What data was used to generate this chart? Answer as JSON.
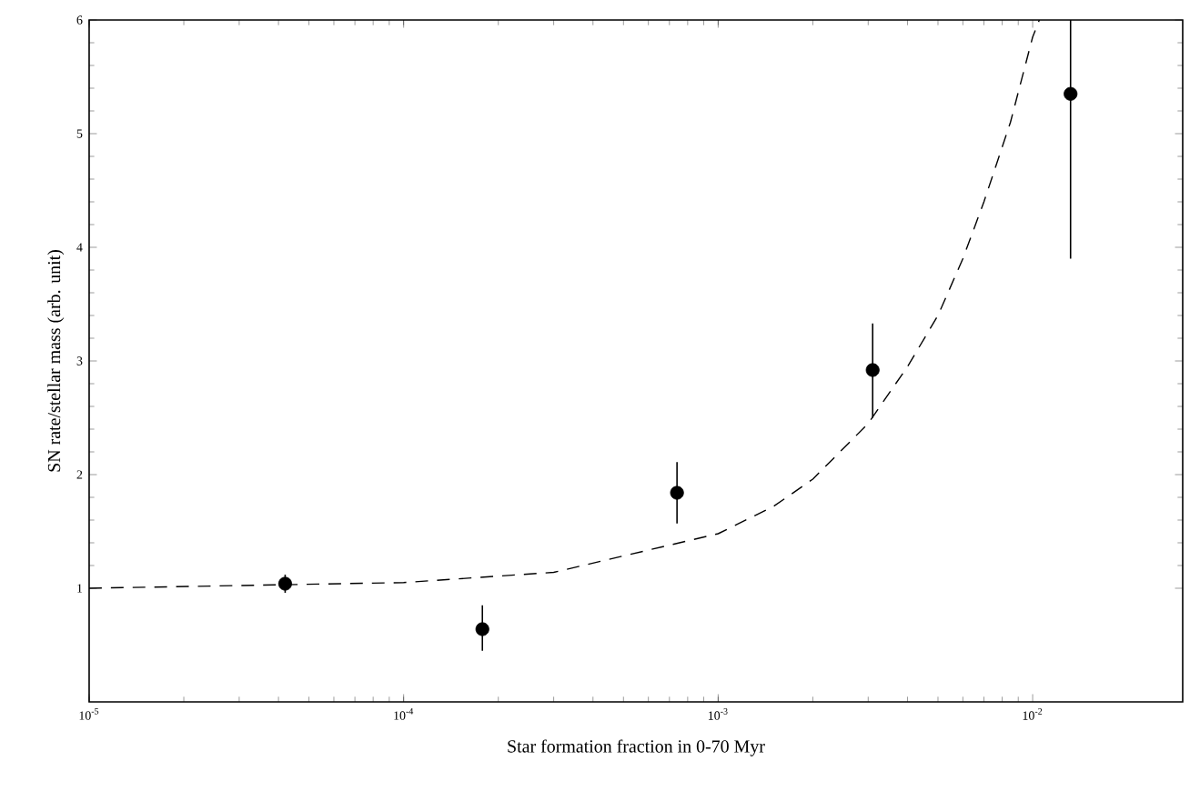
{
  "chart_data": {
    "type": "scatter",
    "xlabel": "Star formation fraction in 0-70 Myr",
    "ylabel": "SN rate/stellar mass (arb. unit)",
    "log": "x",
    "xlim": [
      1e-05,
      0.03
    ],
    "ylim": [
      0,
      6
    ],
    "xticks": [
      {
        "value": 1e-05,
        "label": "10$^{-5}$"
      },
      {
        "value": 0.0001,
        "label": "10$^{-4}$"
      },
      {
        "value": 0.001,
        "label": "10$^{-3}$"
      },
      {
        "value": 0.01,
        "label": "10$^{-2}$"
      }
    ],
    "yticks": [
      1,
      2,
      3,
      4,
      5,
      6
    ],
    "series": [
      {
        "color": "#000000",
        "marker": "circle",
        "x": [
          4.2e-05,
          0.000178,
          0.00074,
          0.0031,
          0.0132
        ],
        "values": [
          1.04,
          0.64,
          1.84,
          2.92,
          5.35
        ],
        "errors": [
          [
            0.96,
            1.12
          ],
          [
            0.45,
            0.85
          ],
          [
            1.57,
            2.11
          ],
          [
            2.5,
            3.33
          ],
          [
            3.9,
            6.0
          ]
        ]
      },
      {
        "type": "line",
        "color": "#000000",
        "line_style": "dashed",
        "marker": "none",
        "x": [
          1e-05,
          0.0001,
          0.0003,
          0.001,
          0.0015,
          0.002,
          0.003,
          0.004,
          0.005,
          0.006,
          0.007,
          0.0085,
          0.01,
          0.0105
        ],
        "values": [
          1.0,
          1.05,
          1.14,
          1.48,
          1.72,
          1.96,
          2.45,
          2.95,
          3.4,
          3.9,
          4.4,
          5.1,
          5.85,
          6.0
        ]
      }
    ]
  }
}
